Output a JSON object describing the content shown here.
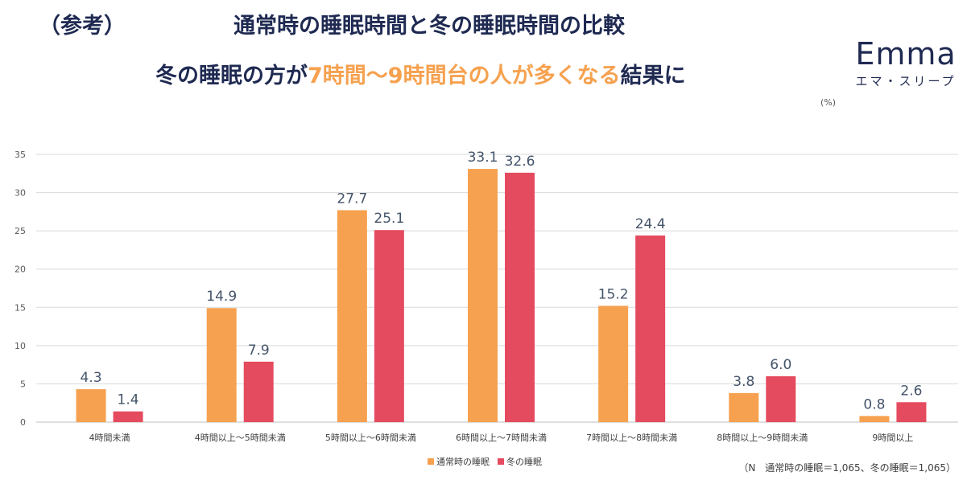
{
  "header": {
    "ref_label": "（参考）",
    "title": "通常時の睡眠時間と冬の睡眠時間の比較",
    "subtitle_pre": "冬の睡眠の方が",
    "subtitle_highlight": "7時間～9時間台の人が多くなる",
    "subtitle_post": "結果に"
  },
  "logo": {
    "main": "Emma",
    "sub": "エマ・スリープ"
  },
  "unit_label": "(%)",
  "footnote": "（N　通常時の睡眠＝1,065、冬の睡眠＝1,065）",
  "colors": {
    "normal": "#f6a14f",
    "winter": "#e54b5f",
    "title": "#1f2a52",
    "highlight": "#f6a14f"
  },
  "chart_data": {
    "type": "bar",
    "title": "通常時の睡眠時間と冬の睡眠時間の比較",
    "xlabel": "",
    "ylabel": "(%)",
    "ylim": [
      0,
      35
    ],
    "yticks": [
      0,
      5,
      10,
      15,
      20,
      25,
      30,
      35
    ],
    "grid": true,
    "legend_position": "bottom",
    "categories": [
      "4時間未満",
      "4時間以上～5時間未満",
      "5時間以上～6時間未満",
      "6時間以上～7時間未満",
      "7時間以上～8時間未満",
      "8時間以上～9時間未満",
      "9時間以上"
    ],
    "series": [
      {
        "name": "通常時の睡眠",
        "values": [
          4.3,
          14.9,
          27.7,
          33.1,
          15.2,
          3.8,
          0.8
        ]
      },
      {
        "name": "冬の睡眠",
        "values": [
          1.4,
          7.9,
          25.1,
          32.6,
          24.4,
          6.0,
          2.6
        ]
      }
    ]
  }
}
